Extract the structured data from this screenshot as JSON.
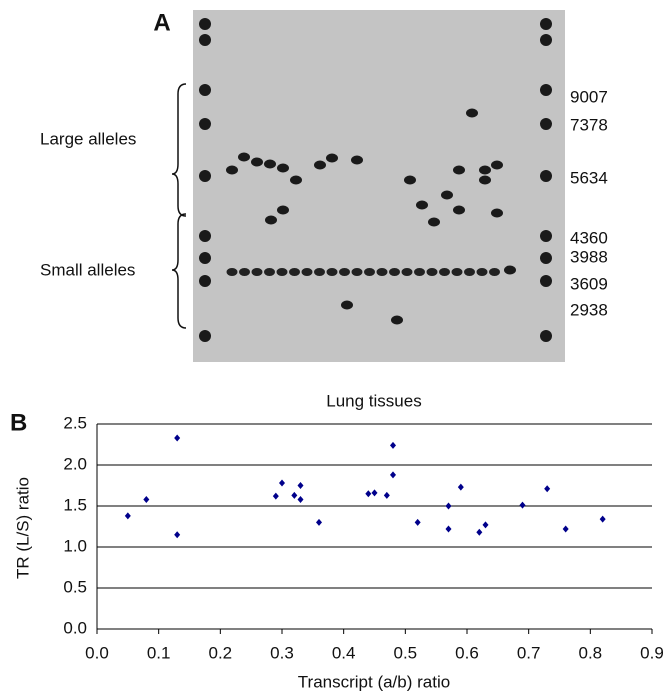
{
  "panel_a": {
    "label": "A",
    "large_alleles": "Large alleles",
    "small_alleles": "Small alleles",
    "markers": [
      "9007",
      "7378",
      "5634",
      "4360",
      "3988",
      "3609",
      "2938"
    ]
  },
  "panel_b_label": "B",
  "chart_data": {
    "type": "scatter",
    "title": "Lung tissues",
    "x_label": "Transcript (a/b) ratio",
    "y_label": "TR (L/S) ratio",
    "x": [
      0.05,
      0.08,
      0.13,
      0.13,
      0.29,
      0.3,
      0.32,
      0.33,
      0.33,
      0.36,
      0.44,
      0.45,
      0.47,
      0.48,
      0.48,
      0.52,
      0.57,
      0.57,
      0.59,
      0.62,
      0.63,
      0.69,
      0.73,
      0.76,
      0.82
    ],
    "values": [
      1.38,
      1.58,
      1.15,
      2.33,
      1.62,
      1.78,
      1.63,
      1.58,
      1.75,
      1.3,
      1.65,
      1.66,
      1.63,
      1.88,
      2.24,
      1.3,
      1.5,
      1.22,
      1.73,
      1.18,
      1.27,
      1.51,
      1.71,
      1.22,
      1.34
    ],
    "color": "#00008b",
    "xlim": [
      0,
      0.9
    ],
    "ylim": [
      0,
      2.5
    ],
    "xticks": [
      {
        "value": 0,
        "label": "0.0"
      },
      {
        "value": 0.1,
        "label": "0.1"
      },
      {
        "value": 0.2,
        "label": "0.2"
      },
      {
        "value": 0.3,
        "label": "0.3"
      },
      {
        "value": 0.4,
        "label": "0.4"
      },
      {
        "value": 0.5,
        "label": "0.5"
      },
      {
        "value": 0.6,
        "label": "0.6"
      },
      {
        "value": 0.7,
        "label": "0.7"
      },
      {
        "value": 0.8,
        "label": "0.8"
      },
      {
        "value": 0.9,
        "label": "0.9"
      }
    ],
    "yticks": [
      {
        "value": 0,
        "label": "0.0"
      },
      {
        "value": 0.5,
        "label": "0.5"
      },
      {
        "value": 1,
        "label": "1.0"
      },
      {
        "value": 1.5,
        "label": "1.5"
      },
      {
        "value": 2,
        "label": "2.0"
      },
      {
        "value": 2.5,
        "label": "2.5"
      }
    ],
    "grid": true
  }
}
